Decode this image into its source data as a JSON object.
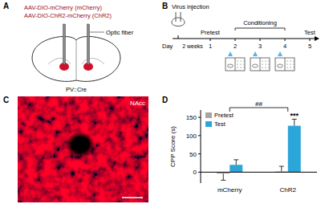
{
  "figure": {
    "panel_a": {
      "label": "A",
      "virus_1": "AAV-DIO-mCherry (mCherry)",
      "virus_2": "AAV-DIO-ChR2-mCherry (ChR2)",
      "fiber": "Optic fiber",
      "mouse_line": "PV::Cre"
    },
    "panel_b": {
      "label": "B",
      "injection": "Virus injection",
      "day_label": "Day",
      "days": [
        1,
        2,
        3,
        4,
        5
      ],
      "interval": "2 weeks",
      "pretest": "Pretest",
      "conditioning": "Conditioning",
      "test": "Test"
    },
    "panel_c": {
      "label": "C",
      "region": "NAcc"
    },
    "panel_d": {
      "label": "D"
    }
  },
  "chart_data": {
    "type": "bar",
    "y_label": "CPP Score (s)",
    "categories": [
      "mCherry",
      "ChR2"
    ],
    "series": [
      {
        "name": "Pretest",
        "color": "#a6a6a6",
        "values": [
          -4,
          2
        ],
        "errors": [
          18,
          14
        ]
      },
      {
        "name": "Test",
        "color": "#2ba6d9",
        "values": [
          20,
          127
        ],
        "errors": [
          14,
          18
        ]
      }
    ],
    "ylim": [
      -30,
      170
    ],
    "yticks": [
      0,
      50,
      100,
      150
    ],
    "legend": "top",
    "annotations": [
      {
        "text": "***",
        "category": 1,
        "series": 1
      },
      {
        "text": "##",
        "categories": [
          0,
          1
        ]
      }
    ]
  }
}
